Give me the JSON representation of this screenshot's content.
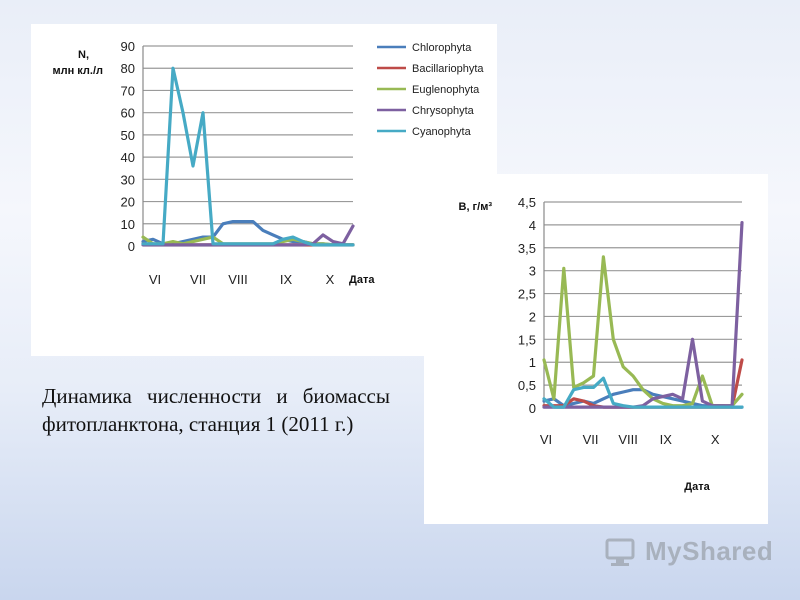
{
  "caption": "Динамика численности и биомассы фитопланктона, станция 1 (2011 г.)",
  "watermark": "MyShared",
  "series_colors": {
    "Chlorophyta": "#4a7ebb",
    "Bacillariophyta": "#be4b48",
    "Euglenophyta": "#98b954",
    "Chrysophyta": "#7d60a0",
    "Cyanophyta": "#46aac5"
  },
  "chart_data": [
    {
      "type": "line",
      "ylabel": "N, млн кл./л",
      "xlabel": "Дата",
      "ylim": [
        0,
        90
      ],
      "yticks": [
        0,
        10,
        20,
        30,
        40,
        50,
        60,
        70,
        80,
        90
      ],
      "month_labels": [
        "VI",
        "VII",
        "VIII",
        "IX",
        "X"
      ],
      "month_positions": [
        1.2,
        5.5,
        9.5,
        14.3,
        18.7
      ],
      "x": [
        0,
        1,
        2,
        3,
        4,
        5,
        6,
        7,
        8,
        9,
        10,
        11,
        12,
        13,
        14,
        15,
        16,
        17,
        18,
        19,
        20,
        21
      ],
      "xlim": [
        0,
        21
      ],
      "grid": true,
      "legend": "right",
      "series": [
        {
          "name": "Chlorophyta",
          "values": [
            2,
            3,
            1,
            1,
            2,
            3,
            4,
            4,
            10,
            11,
            11,
            11,
            7,
            5,
            3,
            2,
            2,
            1,
            1,
            0.5,
            0.5,
            0.5
          ]
        },
        {
          "name": "Bacillariophyta",
          "values": [
            1,
            0.5,
            0.5,
            0.5,
            0.5,
            0.5,
            0.5,
            0.5,
            0.5,
            0.5,
            0.5,
            0.5,
            0.5,
            0.5,
            0.5,
            0.5,
            0.5,
            0.5,
            0.5,
            0.5,
            0.5,
            0.5
          ]
        },
        {
          "name": "Euglenophyta",
          "values": [
            4,
            1,
            1,
            2,
            1,
            2,
            3,
            4,
            1,
            1,
            1,
            1,
            1,
            1,
            2,
            3,
            2,
            1,
            1,
            0.5,
            0.5,
            0.5
          ]
        },
        {
          "name": "Chrysophyta",
          "values": [
            0.5,
            0.5,
            0.5,
            0.5,
            0.5,
            0.5,
            0.5,
            0.5,
            0.5,
            0.5,
            0.5,
            0.5,
            0.5,
            0.5,
            0.5,
            0.5,
            0.5,
            1,
            5,
            2,
            1,
            9
          ]
        },
        {
          "name": "Cyanophyta",
          "values": [
            1,
            1,
            1,
            80,
            60,
            36,
            60,
            1,
            1,
            1,
            1,
            1,
            1,
            1,
            3,
            4,
            2,
            0.5,
            0.5,
            0.5,
            0.5,
            0.5
          ]
        }
      ]
    },
    {
      "type": "line",
      "ylabel": "B, г/м³",
      "xlabel": "Дата",
      "ylim": [
        0,
        4.5
      ],
      "yticks": [
        "0",
        "0,5",
        "1",
        "1,5",
        "2",
        "2,5",
        "3",
        "3,5",
        "4",
        "4,5"
      ],
      "month_labels": [
        "VI",
        "VII",
        "VIII",
        "IX",
        "X"
      ],
      "month_positions": [
        0.2,
        4.7,
        8.5,
        12.3,
        17.3
      ],
      "x": [
        0,
        1,
        2,
        3,
        4,
        5,
        6,
        7,
        8,
        9,
        10,
        11,
        12,
        13,
        14,
        15,
        16,
        17,
        18,
        19,
        20
      ],
      "xlim": [
        0,
        20
      ],
      "grid": true,
      "series": [
        {
          "name": "Chlorophyta",
          "values": [
            0.15,
            0.2,
            0.05,
            0.1,
            0.15,
            0.1,
            0.2,
            0.3,
            0.35,
            0.4,
            0.4,
            0.3,
            0.25,
            0.2,
            0.15,
            0.1,
            0.05,
            0.05,
            0.05,
            0.02,
            0.02
          ]
        },
        {
          "name": "Bacillariophyta",
          "values": [
            0.05,
            0.05,
            0.05,
            0.2,
            0.15,
            0.05,
            0.02,
            0.02,
            0.02,
            0.02,
            0.02,
            0.02,
            0.02,
            0.02,
            0.02,
            0.02,
            0.02,
            0.02,
            0.02,
            0.02,
            1.05
          ]
        },
        {
          "name": "Euglenophyta",
          "values": [
            1.05,
            0.2,
            3.05,
            0.45,
            0.55,
            0.7,
            3.3,
            1.5,
            0.9,
            0.7,
            0.4,
            0.2,
            0.1,
            0.05,
            0.05,
            0.1,
            0.7,
            0.05,
            0.05,
            0.05,
            0.3
          ]
        },
        {
          "name": "Chrysophyta",
          "values": [
            0.02,
            0.02,
            0.02,
            0.02,
            0.02,
            0.02,
            0.02,
            0.02,
            0.02,
            0.02,
            0.05,
            0.2,
            0.25,
            0.3,
            0.2,
            1.5,
            0.15,
            0.05,
            0.05,
            0.05,
            4.05
          ]
        },
        {
          "name": "Cyanophyta",
          "values": [
            0.2,
            0.02,
            0.02,
            0.4,
            0.45,
            0.45,
            0.65,
            0.1,
            0.05,
            0.02,
            0.02,
            0.02,
            0.02,
            0.02,
            0.02,
            0.02,
            0.02,
            0.02,
            0.02,
            0.02,
            0.02
          ]
        }
      ]
    }
  ]
}
